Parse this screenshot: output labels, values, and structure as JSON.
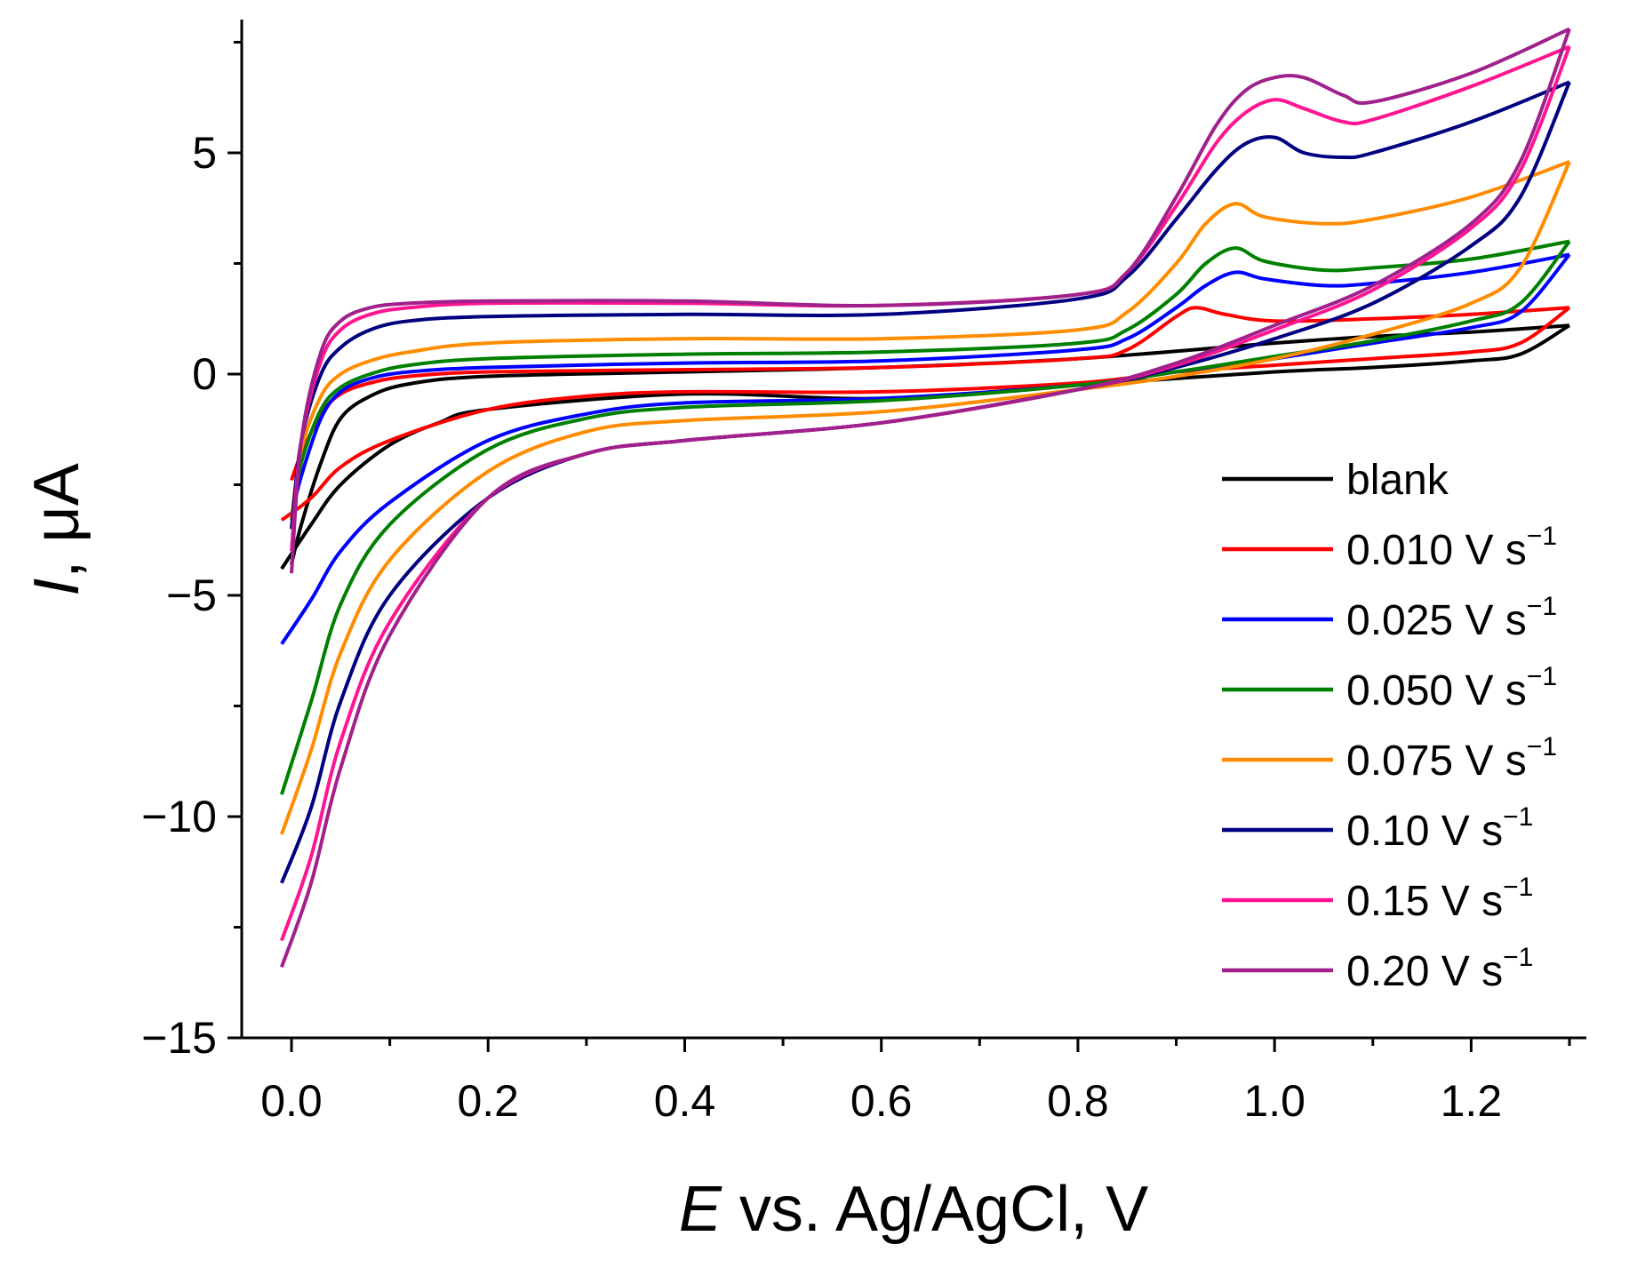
{
  "chart_data": {
    "type": "line",
    "title": "",
    "xlabel": {
      "italic": "E",
      "rest": " vs. Ag/AgCl, V"
    },
    "ylabel": {
      "italic": "I",
      "rest": ", μA"
    },
    "xlim": [
      -0.05,
      1.35
    ],
    "ylim": [
      -15,
      8
    ],
    "xticks": [
      0.0,
      0.2,
      0.4,
      0.6,
      0.8,
      1.0,
      1.2
    ],
    "xtick_labels": [
      "0.0",
      "0.2",
      "0.4",
      "0.6",
      "0.8",
      "1.0",
      "1.2"
    ],
    "yticks": [
      -15,
      -10,
      -5,
      0,
      5
    ],
    "ytick_labels": [
      "−15",
      "−10",
      "−5",
      "0",
      "5"
    ],
    "grid": false,
    "legend_position": "right",
    "series": [
      {
        "name": "blank",
        "sup": "",
        "color": "#000000",
        "forward": [
          [
            0.0,
            -4.3
          ],
          [
            0.01,
            -3.4
          ],
          [
            0.03,
            -2.0
          ],
          [
            0.05,
            -1.0
          ],
          [
            0.08,
            -0.5
          ],
          [
            0.12,
            -0.22
          ],
          [
            0.2,
            -0.05
          ],
          [
            0.4,
            0.05
          ],
          [
            0.6,
            0.15
          ],
          [
            0.8,
            0.35
          ],
          [
            1.0,
            0.7
          ],
          [
            1.1,
            0.85
          ],
          [
            1.2,
            0.95
          ],
          [
            1.3,
            1.1
          ]
        ],
        "reverse": [
          [
            1.3,
            1.1
          ],
          [
            1.25,
            0.45
          ],
          [
            1.2,
            0.3
          ],
          [
            1.1,
            0.15
          ],
          [
            1.0,
            0.05
          ],
          [
            0.8,
            -0.25
          ],
          [
            0.6,
            -0.55
          ],
          [
            0.4,
            -0.45
          ],
          [
            0.2,
            -0.8
          ],
          [
            0.15,
            -1.1
          ],
          [
            0.1,
            -1.6
          ],
          [
            0.05,
            -2.5
          ],
          [
            0.02,
            -3.4
          ],
          [
            -0.01,
            -4.4
          ]
        ]
      },
      {
        "name": "0.010 V s",
        "sup": "−1",
        "color": "#ff0000",
        "forward": [
          [
            0.0,
            -2.4
          ],
          [
            0.01,
            -1.8
          ],
          [
            0.03,
            -0.9
          ],
          [
            0.05,
            -0.45
          ],
          [
            0.08,
            -0.2
          ],
          [
            0.12,
            -0.05
          ],
          [
            0.2,
            0.05
          ],
          [
            0.4,
            0.1
          ],
          [
            0.6,
            0.15
          ],
          [
            0.8,
            0.35
          ],
          [
            0.85,
            0.55
          ],
          [
            0.9,
            1.3
          ],
          [
            0.92,
            1.5
          ],
          [
            0.95,
            1.35
          ],
          [
            1.0,
            1.2
          ],
          [
            1.1,
            1.25
          ],
          [
            1.2,
            1.35
          ],
          [
            1.3,
            1.5
          ]
        ],
        "reverse": [
          [
            1.3,
            1.5
          ],
          [
            1.25,
            0.7
          ],
          [
            1.2,
            0.5
          ],
          [
            1.1,
            0.35
          ],
          [
            1.0,
            0.2
          ],
          [
            0.9,
            0.05
          ],
          [
            0.8,
            -0.2
          ],
          [
            0.6,
            -0.4
          ],
          [
            0.4,
            -0.4
          ],
          [
            0.3,
            -0.5
          ],
          [
            0.2,
            -0.8
          ],
          [
            0.1,
            -1.5
          ],
          [
            0.05,
            -2.1
          ],
          [
            0.02,
            -2.8
          ],
          [
            -0.01,
            -3.3
          ]
        ]
      },
      {
        "name": "0.025 V s",
        "sup": "−1",
        "color": "#0000ff",
        "forward": [
          [
            0.0,
            -3.2
          ],
          [
            0.01,
            -2.3
          ],
          [
            0.03,
            -1.0
          ],
          [
            0.05,
            -0.4
          ],
          [
            0.08,
            -0.1
          ],
          [
            0.12,
            0.05
          ],
          [
            0.2,
            0.15
          ],
          [
            0.4,
            0.25
          ],
          [
            0.6,
            0.3
          ],
          [
            0.8,
            0.55
          ],
          [
            0.85,
            0.8
          ],
          [
            0.9,
            1.5
          ],
          [
            0.93,
            2.0
          ],
          [
            0.96,
            2.3
          ],
          [
            0.99,
            2.15
          ],
          [
            1.05,
            2.0
          ],
          [
            1.1,
            2.05
          ],
          [
            1.2,
            2.3
          ],
          [
            1.3,
            2.7
          ]
        ],
        "reverse": [
          [
            1.3,
            2.7
          ],
          [
            1.25,
            1.4
          ],
          [
            1.2,
            1.05
          ],
          [
            1.1,
            0.7
          ],
          [
            1.0,
            0.35
          ],
          [
            0.9,
            0.05
          ],
          [
            0.8,
            -0.25
          ],
          [
            0.6,
            -0.55
          ],
          [
            0.4,
            -0.65
          ],
          [
            0.3,
            -0.9
          ],
          [
            0.2,
            -1.5
          ],
          [
            0.1,
            -2.9
          ],
          [
            0.05,
            -4.0
          ],
          [
            0.02,
            -5.1
          ],
          [
            -0.01,
            -6.1
          ]
        ]
      },
      {
        "name": "0.050 V s",
        "sup": "−1",
        "color": "#008000",
        "forward": [
          [
            0.0,
            -3.3
          ],
          [
            0.01,
            -2.0
          ],
          [
            0.03,
            -0.8
          ],
          [
            0.05,
            -0.3
          ],
          [
            0.08,
            0.0
          ],
          [
            0.12,
            0.2
          ],
          [
            0.2,
            0.35
          ],
          [
            0.4,
            0.45
          ],
          [
            0.6,
            0.5
          ],
          [
            0.8,
            0.7
          ],
          [
            0.85,
            1.0
          ],
          [
            0.9,
            1.8
          ],
          [
            0.93,
            2.5
          ],
          [
            0.96,
            2.85
          ],
          [
            0.99,
            2.55
          ],
          [
            1.05,
            2.35
          ],
          [
            1.1,
            2.4
          ],
          [
            1.2,
            2.6
          ],
          [
            1.3,
            3.0
          ]
        ],
        "reverse": [
          [
            1.3,
            3.0
          ],
          [
            1.25,
            1.6
          ],
          [
            1.2,
            1.2
          ],
          [
            1.1,
            0.75
          ],
          [
            1.0,
            0.4
          ],
          [
            0.9,
            0.05
          ],
          [
            0.8,
            -0.25
          ],
          [
            0.6,
            -0.6
          ],
          [
            0.4,
            -0.75
          ],
          [
            0.3,
            -1.0
          ],
          [
            0.2,
            -1.7
          ],
          [
            0.1,
            -3.4
          ],
          [
            0.05,
            -5.2
          ],
          [
            0.02,
            -7.4
          ],
          [
            -0.01,
            -9.5
          ]
        ]
      },
      {
        "name": "0.075 V s",
        "sup": "−1",
        "color": "#ff8c00",
        "forward": [
          [
            0.0,
            -3.3
          ],
          [
            0.01,
            -1.7
          ],
          [
            0.03,
            -0.5
          ],
          [
            0.05,
            0.0
          ],
          [
            0.08,
            0.3
          ],
          [
            0.12,
            0.5
          ],
          [
            0.2,
            0.7
          ],
          [
            0.4,
            0.8
          ],
          [
            0.6,
            0.8
          ],
          [
            0.8,
            1.0
          ],
          [
            0.85,
            1.4
          ],
          [
            0.9,
            2.5
          ],
          [
            0.93,
            3.4
          ],
          [
            0.96,
            3.85
          ],
          [
            0.99,
            3.55
          ],
          [
            1.05,
            3.4
          ],
          [
            1.1,
            3.5
          ],
          [
            1.2,
            4.0
          ],
          [
            1.3,
            4.8
          ]
        ],
        "reverse": [
          [
            1.3,
            4.8
          ],
          [
            1.25,
            2.4
          ],
          [
            1.2,
            1.6
          ],
          [
            1.1,
            0.9
          ],
          [
            1.0,
            0.35
          ],
          [
            0.9,
            -0.05
          ],
          [
            0.8,
            -0.35
          ],
          [
            0.6,
            -0.85
          ],
          [
            0.4,
            -1.05
          ],
          [
            0.3,
            -1.3
          ],
          [
            0.2,
            -2.2
          ],
          [
            0.1,
            -4.2
          ],
          [
            0.05,
            -6.3
          ],
          [
            0.02,
            -8.5
          ],
          [
            -0.01,
            -10.4
          ]
        ]
      },
      {
        "name": "0.10 V s",
        "sup": "−1",
        "color": "#000080",
        "forward": [
          [
            0.0,
            -3.5
          ],
          [
            0.01,
            -1.5
          ],
          [
            0.03,
            0.0
          ],
          [
            0.05,
            0.6
          ],
          [
            0.08,
            1.0
          ],
          [
            0.12,
            1.2
          ],
          [
            0.2,
            1.3
          ],
          [
            0.4,
            1.35
          ],
          [
            0.6,
            1.35
          ],
          [
            0.8,
            1.7
          ],
          [
            0.85,
            2.2
          ],
          [
            0.9,
            3.5
          ],
          [
            0.94,
            4.6
          ],
          [
            0.97,
            5.2
          ],
          [
            1.0,
            5.35
          ],
          [
            1.03,
            5.0
          ],
          [
            1.07,
            4.9
          ],
          [
            1.1,
            5.0
          ],
          [
            1.2,
            5.7
          ],
          [
            1.3,
            6.6
          ]
        ],
        "reverse": [
          [
            1.3,
            6.6
          ],
          [
            1.25,
            4.0
          ],
          [
            1.2,
            2.9
          ],
          [
            1.1,
            1.6
          ],
          [
            1.0,
            0.8
          ],
          [
            0.9,
            0.15
          ],
          [
            0.8,
            -0.35
          ],
          [
            0.6,
            -1.1
          ],
          [
            0.4,
            -1.5
          ],
          [
            0.3,
            -1.8
          ],
          [
            0.2,
            -2.8
          ],
          [
            0.1,
            -5.0
          ],
          [
            0.05,
            -7.4
          ],
          [
            0.02,
            -9.8
          ],
          [
            -0.01,
            -11.5
          ]
        ]
      },
      {
        "name": "0.15 V s",
        "sup": "−1",
        "color": "#ff1493",
        "forward": [
          [
            0.0,
            -4.0
          ],
          [
            0.01,
            -1.5
          ],
          [
            0.03,
            0.3
          ],
          [
            0.05,
            1.0
          ],
          [
            0.08,
            1.35
          ],
          [
            0.12,
            1.5
          ],
          [
            0.2,
            1.6
          ],
          [
            0.4,
            1.6
          ],
          [
            0.6,
            1.55
          ],
          [
            0.8,
            1.8
          ],
          [
            0.85,
            2.3
          ],
          [
            0.9,
            3.8
          ],
          [
            0.94,
            5.2
          ],
          [
            0.97,
            5.9
          ],
          [
            1.0,
            6.2
          ],
          [
            1.03,
            6.0
          ],
          [
            1.07,
            5.7
          ],
          [
            1.1,
            5.75
          ],
          [
            1.2,
            6.5
          ],
          [
            1.3,
            7.4
          ]
        ],
        "reverse": [
          [
            1.3,
            7.4
          ],
          [
            1.25,
            4.6
          ],
          [
            1.2,
            3.3
          ],
          [
            1.1,
            1.9
          ],
          [
            1.0,
            1.0
          ],
          [
            0.9,
            0.2
          ],
          [
            0.8,
            -0.35
          ],
          [
            0.6,
            -1.1
          ],
          [
            0.4,
            -1.5
          ],
          [
            0.3,
            -1.8
          ],
          [
            0.2,
            -2.8
          ],
          [
            0.1,
            -5.6
          ],
          [
            0.05,
            -8.3
          ],
          [
            0.02,
            -10.9
          ],
          [
            -0.01,
            -12.8
          ]
        ]
      },
      {
        "name": "0.20 V s",
        "sup": "−1",
        "color": "#a0208c",
        "forward": [
          [
            0.0,
            -4.5
          ],
          [
            0.01,
            -1.5
          ],
          [
            0.03,
            0.5
          ],
          [
            0.05,
            1.2
          ],
          [
            0.08,
            1.5
          ],
          [
            0.12,
            1.6
          ],
          [
            0.2,
            1.65
          ],
          [
            0.4,
            1.65
          ],
          [
            0.6,
            1.55
          ],
          [
            0.8,
            1.8
          ],
          [
            0.85,
            2.3
          ],
          [
            0.9,
            4.0
          ],
          [
            0.94,
            5.6
          ],
          [
            0.97,
            6.4
          ],
          [
            1.0,
            6.7
          ],
          [
            1.03,
            6.7
          ],
          [
            1.07,
            6.3
          ],
          [
            1.1,
            6.15
          ],
          [
            1.2,
            6.8
          ],
          [
            1.3,
            7.8
          ]
        ],
        "reverse": [
          [
            1.3,
            7.8
          ],
          [
            1.25,
            4.8
          ],
          [
            1.2,
            3.4
          ],
          [
            1.1,
            2.0
          ],
          [
            1.0,
            1.1
          ],
          [
            0.9,
            0.25
          ],
          [
            0.8,
            -0.35
          ],
          [
            0.6,
            -1.1
          ],
          [
            0.4,
            -1.5
          ],
          [
            0.3,
            -1.8
          ],
          [
            0.2,
            -2.8
          ],
          [
            0.1,
            -5.9
          ],
          [
            0.05,
            -8.9
          ],
          [
            0.02,
            -11.5
          ],
          [
            -0.01,
            -13.4
          ]
        ]
      }
    ]
  }
}
